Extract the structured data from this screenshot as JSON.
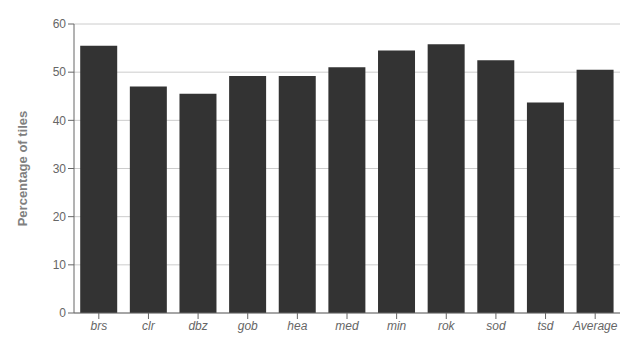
{
  "chart_data": {
    "type": "bar",
    "categories": [
      "brs",
      "clr",
      "dbz",
      "gob",
      "hea",
      "med",
      "min",
      "rok",
      "sod",
      "tsd",
      "Average"
    ],
    "values": [
      55.5,
      47.0,
      45.5,
      49.2,
      49.2,
      51.0,
      54.5,
      55.8,
      52.5,
      43.7,
      50.5
    ],
    "color": "#333333",
    "ylabel": "Percentage of tiles",
    "ylim": [
      0,
      60
    ],
    "yticks": [
      0,
      10,
      20,
      30,
      40,
      50,
      60
    ],
    "grid": true
  }
}
